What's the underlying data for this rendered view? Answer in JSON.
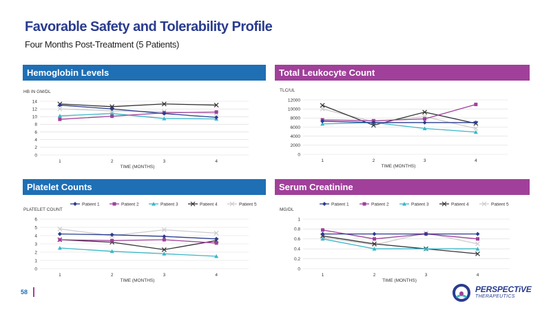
{
  "page": {
    "title": "Favorable Safety and Tolerability Profile",
    "subtitle": "Four Months Post-Treatment (5 Patients)",
    "page_number": "58",
    "logo_name": "PERSPECTiVE",
    "logo_sub": "THERAPEUTICS"
  },
  "colors": {
    "blue_band": "#1f6fb5",
    "purple_band": "#a0409a",
    "patient_1": "#2a3c8f",
    "patient_2": "#a0409a",
    "patient_3": "#3ab6c8",
    "patient_4": "#333333",
    "patient_5": "#cccccc"
  },
  "chart_data": [
    {
      "id": "hemoglobin",
      "type": "line",
      "panel_title": "Hemoglobin Levels",
      "ylabel": "HB IN GM/DL",
      "xlabel": "TIME (MONTHS)",
      "categories": [
        "1",
        "2",
        "3",
        "4"
      ],
      "ylim": [
        0,
        14
      ],
      "yticks": [
        0,
        2,
        4,
        6,
        8,
        10,
        12,
        14
      ],
      "legend": false,
      "series": [
        {
          "name": "Patient 1",
          "values": [
            13.0,
            12.0,
            10.8,
            9.8
          ]
        },
        {
          "name": "Patient 2",
          "values": [
            9.3,
            10.1,
            11.0,
            11.2
          ]
        },
        {
          "name": "Patient 3",
          "values": [
            10.2,
            10.8,
            9.5,
            9.4
          ]
        },
        {
          "name": "Patient 4",
          "values": [
            13.3,
            12.6,
            13.3,
            13.0
          ]
        },
        {
          "name": "Patient 5",
          "values": [
            12.0,
            11.5,
            11.3,
            10.8
          ]
        }
      ]
    },
    {
      "id": "leukocyte",
      "type": "line",
      "panel_title": "Total Leukocyte Count",
      "ylabel": "TLC/UL",
      "xlabel": "TIME (MONTHS)",
      "categories": [
        "1",
        "2",
        "3",
        "4"
      ],
      "ylim": [
        0,
        12000
      ],
      "yticks": [
        0,
        2000,
        4000,
        6000,
        8000,
        10000,
        12000
      ],
      "legend": false,
      "series": [
        {
          "name": "Patient 1",
          "values": [
            7300,
            7000,
            7000,
            7000
          ]
        },
        {
          "name": "Patient 2",
          "values": [
            7600,
            7400,
            7800,
            11000
          ]
        },
        {
          "name": "Patient 3",
          "values": [
            6700,
            7000,
            5700,
            4900
          ]
        },
        {
          "name": "Patient 4",
          "values": [
            10800,
            6400,
            9300,
            6800
          ]
        },
        {
          "name": "Patient 5",
          "values": [
            10000,
            7200,
            8300,
            5700
          ]
        }
      ]
    },
    {
      "id": "platelet",
      "type": "line",
      "panel_title": "Platelet Counts",
      "ylabel": "PLATELET COUNT",
      "xlabel": "TIME (MONTHS)",
      "categories": [
        "1",
        "2",
        "3",
        "4"
      ],
      "ylim": [
        0,
        6
      ],
      "yticks": [
        0,
        1,
        2,
        3,
        4,
        5,
        6
      ],
      "legend": true,
      "series": [
        {
          "name": "Patient 1",
          "values": [
            4.2,
            4.1,
            3.9,
            3.6
          ]
        },
        {
          "name": "Patient 2",
          "values": [
            3.5,
            3.4,
            3.5,
            3.1
          ]
        },
        {
          "name": "Patient 3",
          "values": [
            2.5,
            2.1,
            1.8,
            1.5
          ]
        },
        {
          "name": "Patient 4",
          "values": [
            3.5,
            3.2,
            2.3,
            3.4
          ]
        },
        {
          "name": "Patient 5",
          "values": [
            4.8,
            4.0,
            4.7,
            4.3
          ]
        }
      ]
    },
    {
      "id": "creatinine",
      "type": "line",
      "panel_title": "Serum Creatinine",
      "ylabel": "MG/DL",
      "xlabel": "TIME (MONTHS)",
      "categories": [
        "1",
        "2",
        "3",
        "4"
      ],
      "ylim": [
        0,
        1
      ],
      "yticks": [
        0,
        0.2,
        0.4,
        0.6,
        0.8,
        1
      ],
      "legend": true,
      "series": [
        {
          "name": "Patient 1",
          "values": [
            0.7,
            0.7,
            0.7,
            0.7
          ]
        },
        {
          "name": "Patient 2",
          "values": [
            0.78,
            0.6,
            0.7,
            0.6
          ]
        },
        {
          "name": "Patient 3",
          "values": [
            0.6,
            0.4,
            0.4,
            0.4
          ]
        },
        {
          "name": "Patient 4",
          "values": [
            0.66,
            0.5,
            0.4,
            0.3
          ]
        },
        {
          "name": "Patient 5",
          "values": [
            0.63,
            0.48,
            0.72,
            0.5
          ]
        }
      ]
    }
  ]
}
